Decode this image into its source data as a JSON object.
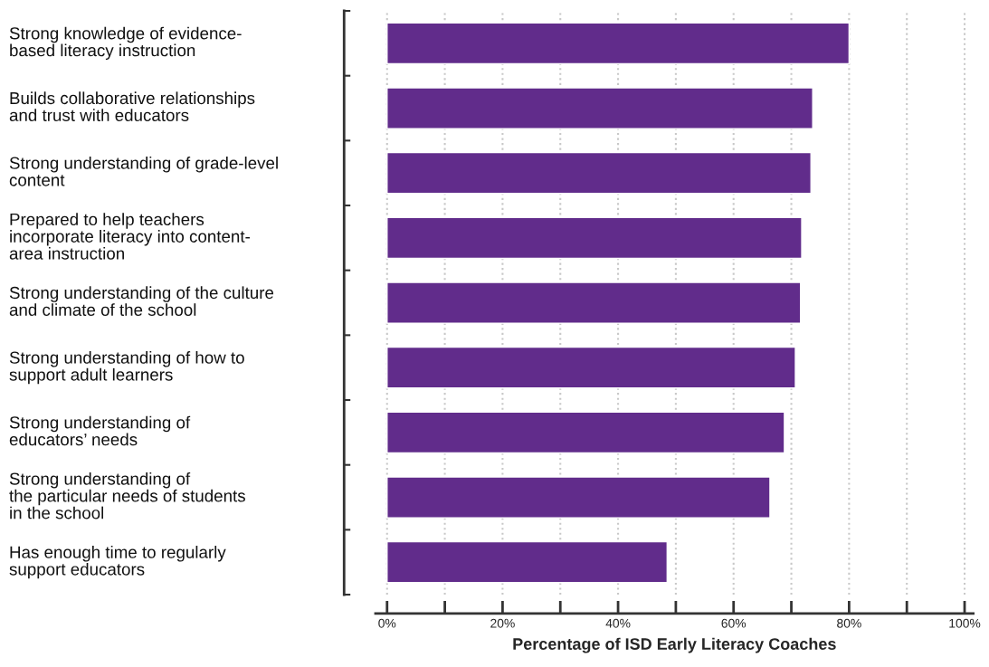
{
  "chart_data": {
    "type": "bar",
    "orientation": "horizontal",
    "categories": [
      "Strong knowledge of evidence-\nbased literacy instruction",
      "Builds collaborative relationships\nand trust with educators",
      "Strong understanding of grade-level\ncontent",
      "Prepared to help teachers\nincorporate literacy into content-\narea instruction",
      "Strong understanding of the culture\nand climate of the school",
      "Strong understanding of how to\nsupport adult learners",
      "Strong understanding of\neducators’ needs",
      "Strong understanding of\nthe particular needs of students\nin the school",
      "Has enough time to regularly\nsupport educators"
    ],
    "values": [
      80,
      73.7,
      73.4,
      71.8,
      71.6,
      70.7,
      68.8,
      66.3,
      48.5
    ],
    "color": "#612c8b",
    "xlabel": "Percentage of ISD Early Literacy Coaches",
    "xlim": [
      -2,
      101.5
    ],
    "xticks": [
      {
        "value": 0,
        "label": "0%"
      },
      {
        "value": 10,
        "label": null
      },
      {
        "value": 20,
        "label": "20%"
      },
      {
        "value": 30,
        "label": null
      },
      {
        "value": 40,
        "label": "40%"
      },
      {
        "value": 50,
        "label": null
      },
      {
        "value": 60,
        "label": "60%"
      },
      {
        "value": 70,
        "label": null
      },
      {
        "value": 80,
        "label": "80%"
      },
      {
        "value": 90,
        "label": null
      },
      {
        "value": 100,
        "label": "100%"
      }
    ],
    "grid": "x"
  }
}
